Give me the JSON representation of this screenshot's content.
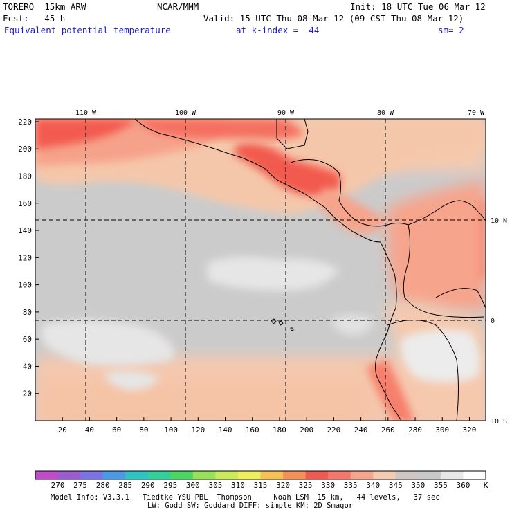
{
  "header": {
    "model": "TORERO  15km ARW",
    "center": "NCAR/MMM",
    "init": "Init: 18 UTC Tue 06 Mar 12",
    "fcst": "Fcst:   45 h",
    "valid": "Valid: 15 UTC Thu 08 Mar 12 (09 CST Thu 08 Mar 12)",
    "field": "Equivalent potential temperature",
    "level": "at k-index =  44",
    "smooth": "sm= 2"
  },
  "map": {
    "top_lon_labels": [
      "110 W",
      "100 W",
      "90 W",
      "80 W",
      "70 W"
    ],
    "right_lat_labels": [
      "10 N",
      "0",
      "10 S"
    ],
    "x_ticks": [
      "20",
      "40",
      "60",
      "80",
      "100",
      "120",
      "140",
      "160",
      "180",
      "200",
      "220",
      "240",
      "260",
      "280",
      "300",
      "320"
    ],
    "y_ticks": [
      "20",
      "40",
      "60",
      "80",
      "100",
      "120",
      "140",
      "160",
      "180",
      "200",
      "220"
    ]
  },
  "colorbar": {
    "unit": "K",
    "labels": [
      "270",
      "275",
      "280",
      "285",
      "290",
      "295",
      "300",
      "305",
      "310",
      "315",
      "320",
      "325",
      "330",
      "335",
      "340",
      "345",
      "350",
      "355",
      "360"
    ],
    "colors": [
      "#c04ccc",
      "#9a5ccf",
      "#7a74e6",
      "#4a9ae6",
      "#2ec4c4",
      "#2ed29a",
      "#4ad862",
      "#96e05a",
      "#caea5a",
      "#eeee5c",
      "#f6c052",
      "#f4925a",
      "#f05a50",
      "#f6786c",
      "#f6a48c",
      "#f4cab0",
      "#cdc6c2",
      "#c8c8c8",
      "#e8e8e8",
      "#ffffff"
    ]
  },
  "footer": {
    "line1": "Model Info: V3.3.1   Tiedtke YSU PBL  Thompson     Noah LSM  15 km,   44 levels,   37 sec",
    "line2": "LW: Godd SW: Goddard DIFF: simple KM: 2D Smagor"
  }
}
